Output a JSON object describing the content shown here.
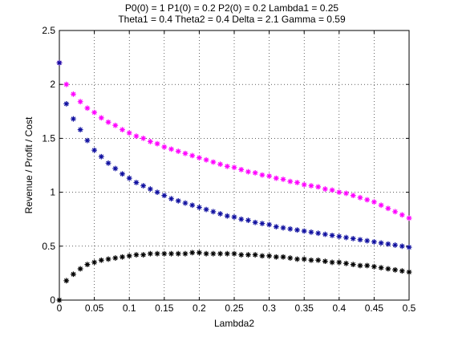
{
  "chart_data": {
    "type": "scatter",
    "title_lines": [
      "P0(0) = 1 P1(0) = 0.2 P2(0) = 0.2 Lambda1 = 0.25",
      "Theta1 = 0.4 Theta2 = 0.4 Delta = 2.1 Gamma = 0.59"
    ],
    "xlabel": "Lambda2",
    "ylabel": "Revenue / Profit / Cost",
    "xlim": [
      0,
      0.5
    ],
    "ylim": [
      0,
      2.5
    ],
    "xticks": [
      "0",
      "0.05",
      "0.1",
      "0.15",
      "0.2",
      "0.25",
      "0.3",
      "0.35",
      "0.4",
      "0.45",
      "0.5"
    ],
    "yticks": [
      "0",
      "0.5",
      "1",
      "1.5",
      "2",
      "2.5"
    ],
    "grid": true,
    "marker": "*",
    "x": [
      0,
      0.01,
      0.02,
      0.03,
      0.04,
      0.05,
      0.06,
      0.07,
      0.08,
      0.09,
      0.1,
      0.11,
      0.12,
      0.13,
      0.14,
      0.15,
      0.16,
      0.17,
      0.18,
      0.19,
      0.2,
      0.21,
      0.22,
      0.23,
      0.24,
      0.25,
      0.26,
      0.27,
      0.28,
      0.29,
      0.3,
      0.31,
      0.32,
      0.33,
      0.34,
      0.35,
      0.36,
      0.37,
      0.38,
      0.39,
      0.4,
      0.41,
      0.42,
      0.43,
      0.44,
      0.45,
      0.46,
      0.47,
      0.48,
      0.49,
      0.5
    ],
    "series": [
      {
        "color": "#ff00ff",
        "values": [
          2.2,
          2.0,
          1.91,
          1.84,
          1.78,
          1.74,
          1.69,
          1.65,
          1.62,
          1.58,
          1.55,
          1.52,
          1.5,
          1.47,
          1.45,
          1.42,
          1.4,
          1.38,
          1.36,
          1.34,
          1.32,
          1.3,
          1.28,
          1.26,
          1.24,
          1.23,
          1.21,
          1.19,
          1.18,
          1.16,
          1.15,
          1.13,
          1.12,
          1.1,
          1.09,
          1.07,
          1.06,
          1.05,
          1.03,
          1.02,
          1.0,
          0.99,
          0.97,
          0.95,
          0.93,
          0.91,
          0.88,
          0.85,
          0.82,
          0.79,
          0.76
        ]
      },
      {
        "color": "#1010a0",
        "values": [
          2.2,
          1.82,
          1.68,
          1.58,
          1.48,
          1.39,
          1.33,
          1.27,
          1.22,
          1.17,
          1.13,
          1.09,
          1.06,
          1.03,
          1.0,
          0.97,
          0.94,
          0.92,
          0.9,
          0.88,
          0.86,
          0.84,
          0.82,
          0.8,
          0.78,
          0.77,
          0.75,
          0.74,
          0.72,
          0.71,
          0.7,
          0.68,
          0.67,
          0.66,
          0.65,
          0.64,
          0.63,
          0.62,
          0.61,
          0.6,
          0.59,
          0.58,
          0.57,
          0.56,
          0.55,
          0.54,
          0.53,
          0.52,
          0.51,
          0.5,
          0.49
        ]
      },
      {
        "color": "#000000",
        "values": [
          0.0,
          0.18,
          0.24,
          0.29,
          0.33,
          0.35,
          0.37,
          0.38,
          0.39,
          0.4,
          0.41,
          0.42,
          0.42,
          0.43,
          0.43,
          0.43,
          0.43,
          0.43,
          0.43,
          0.44,
          0.44,
          0.43,
          0.43,
          0.43,
          0.43,
          0.43,
          0.42,
          0.42,
          0.42,
          0.41,
          0.41,
          0.4,
          0.4,
          0.39,
          0.38,
          0.38,
          0.37,
          0.37,
          0.36,
          0.35,
          0.35,
          0.34,
          0.33,
          0.32,
          0.32,
          0.31,
          0.3,
          0.29,
          0.28,
          0.27,
          0.26
        ]
      }
    ]
  }
}
